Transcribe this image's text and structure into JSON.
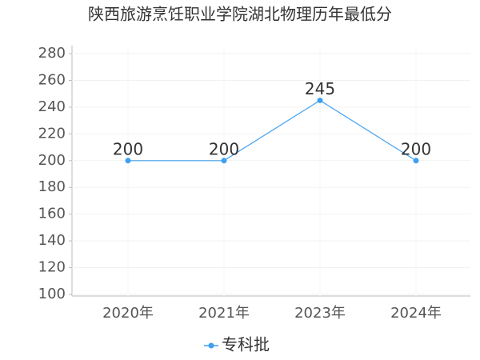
{
  "chart_data": {
    "type": "line",
    "title": "陕西旅游烹饪职业学院湖北物理历年最低分",
    "categories": [
      "2020年",
      "2021年",
      "2023年",
      "2024年"
    ],
    "series": [
      {
        "name": "专科批",
        "color": "#3f9ff0",
        "values": [
          200,
          200,
          245,
          200
        ]
      }
    ],
    "ylim": [
      100,
      286
    ],
    "yticks": [
      100,
      120,
      140,
      160,
      180,
      200,
      220,
      240,
      260,
      280
    ],
    "grid": true,
    "legend": "bottom"
  }
}
